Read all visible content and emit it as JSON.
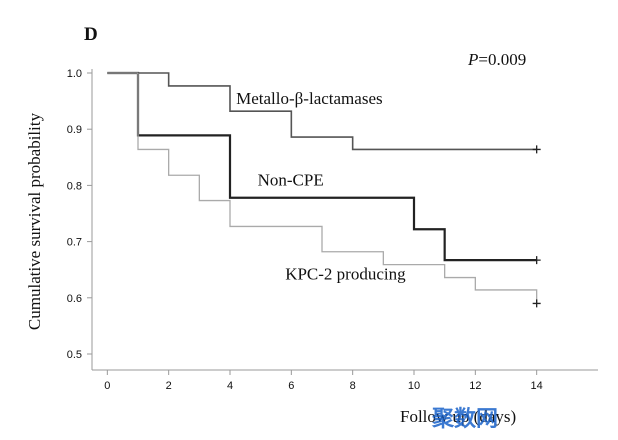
{
  "chart_data": {
    "type": "line",
    "subtype": "kaplan-meier step curves",
    "panel_label": "D",
    "p_value_prefix": "P",
    "p_value_rest": "=0.009",
    "ylabel": "Cumulative survival probability",
    "xlabel": "Follow up (days)",
    "xlim": [
      -0.5,
      16
    ],
    "ylim": [
      0.5,
      1.0
    ],
    "xticks": [
      0,
      2,
      4,
      6,
      8,
      10,
      12,
      14
    ],
    "yticks": [
      0.5,
      0.6,
      0.7,
      0.8,
      0.9,
      1.0
    ],
    "ytick_labels": [
      "0.5",
      "0.6",
      "0.7",
      "0.8",
      "0.9",
      "1.0"
    ],
    "series": [
      {
        "name": "Metallo-β-lactamases",
        "color": "#555555",
        "width": 1.6,
        "points": [
          [
            0,
            1.0
          ],
          [
            2,
            0.977
          ],
          [
            4,
            0.932
          ],
          [
            6,
            0.886
          ],
          [
            8,
            0.864
          ],
          [
            14,
            0.864
          ]
        ],
        "censor": [
          14,
          0.864
        ],
        "label_at": [
          4.2,
          0.945
        ]
      },
      {
        "name": "Non-CPE",
        "color": "#222222",
        "width": 2.2,
        "points": [
          [
            0,
            1.0
          ],
          [
            1,
            0.889
          ],
          [
            4,
            0.778
          ],
          [
            10,
            0.722
          ],
          [
            11,
            0.667
          ],
          [
            14,
            0.667
          ]
        ],
        "censor": [
          14,
          0.667
        ],
        "label_at": [
          4.9,
          0.8
        ]
      },
      {
        "name": "KPC-2 producing",
        "color": "#aaaaaa",
        "width": 1.3,
        "points": [
          [
            0,
            1.0
          ],
          [
            1,
            0.864
          ],
          [
            2,
            0.818
          ],
          [
            3,
            0.773
          ],
          [
            4,
            0.727
          ],
          [
            7,
            0.682
          ],
          [
            9,
            0.659
          ],
          [
            11,
            0.636
          ],
          [
            12,
            0.614
          ],
          [
            14,
            0.59
          ]
        ],
        "censor": [
          14,
          0.59
        ],
        "label_at": [
          5.8,
          0.633
        ]
      }
    ],
    "colors": {
      "axis": "#9a9a9a",
      "text": "#111111"
    }
  },
  "watermark_text": "聚数网"
}
